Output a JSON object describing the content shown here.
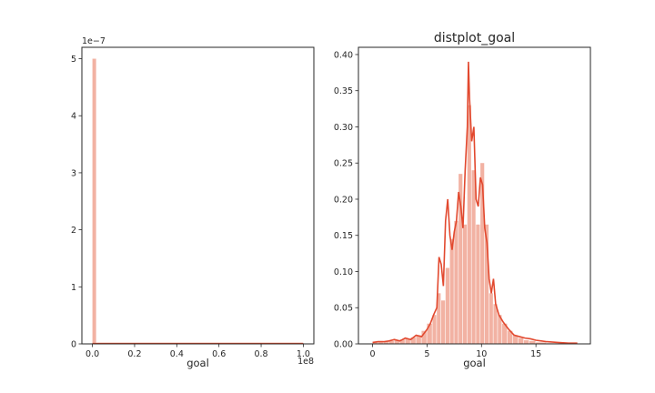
{
  "colors": {
    "bar": "#f2b2a3",
    "kde": "#e2492f",
    "axis": "#262626",
    "background": "#ffffff"
  },
  "chart_data": [
    {
      "type": "histogram",
      "title": "",
      "xlabel": "goal",
      "ylabel": "",
      "x_offset_label": "1e8",
      "y_offset_label": "1e−7",
      "xlim": [
        -0.05,
        1.05
      ],
      "ylim": [
        0,
        5.2
      ],
      "xticks": [
        0.0,
        0.2,
        0.4,
        0.6,
        0.8,
        1.0
      ],
      "xtick_labels": [
        "0.0",
        "0.2",
        "0.4",
        "0.6",
        "0.8",
        "1.0"
      ],
      "yticks": [
        0,
        1,
        2,
        3,
        4,
        5
      ],
      "ytick_labels": [
        "0",
        "1",
        "2",
        "3",
        "4",
        "5"
      ],
      "bins": [
        {
          "x0": 0.0,
          "x1": 0.02,
          "height": 5.0
        },
        {
          "x0": 0.02,
          "x1": 1.0,
          "height": 0.02
        }
      ],
      "kde": {
        "x": [
          0.0,
          1.0
        ],
        "y": [
          0.005,
          0.005
        ]
      },
      "grid": false
    },
    {
      "type": "histogram",
      "title": "distplot_goal",
      "xlabel": "goal",
      "ylabel": "",
      "xlim": [
        -1.3,
        20.0
      ],
      "ylim": [
        0,
        0.41
      ],
      "xticks": [
        0,
        5,
        10,
        15
      ],
      "xtick_labels": [
        "0",
        "5",
        "10",
        "15"
      ],
      "yticks": [
        0.0,
        0.05,
        0.1,
        0.15,
        0.2,
        0.25,
        0.3,
        0.35,
        0.4
      ],
      "ytick_labels": [
        "0.00",
        "0.05",
        "0.10",
        "0.15",
        "0.20",
        "0.25",
        "0.30",
        "0.35",
        "0.40"
      ],
      "bins": [
        {
          "x0": 0.0,
          "x1": 0.5,
          "height": 0.002
        },
        {
          "x0": 0.5,
          "x1": 1.0,
          "height": 0.002
        },
        {
          "x0": 1.0,
          "x1": 1.5,
          "height": 0.003
        },
        {
          "x0": 1.5,
          "x1": 2.0,
          "height": 0.004
        },
        {
          "x0": 2.0,
          "x1": 2.5,
          "height": 0.005
        },
        {
          "x0": 2.5,
          "x1": 3.0,
          "height": 0.006
        },
        {
          "x0": 3.0,
          "x1": 3.5,
          "height": 0.007
        },
        {
          "x0": 3.5,
          "x1": 4.0,
          "height": 0.009
        },
        {
          "x0": 4.0,
          "x1": 4.5,
          "height": 0.012
        },
        {
          "x0": 4.5,
          "x1": 5.0,
          "height": 0.018
        },
        {
          "x0": 5.0,
          "x1": 5.5,
          "height": 0.028
        },
        {
          "x0": 5.5,
          "x1": 5.9,
          "height": 0.04
        },
        {
          "x0": 5.9,
          "x1": 6.3,
          "height": 0.07
        },
        {
          "x0": 6.3,
          "x1": 6.7,
          "height": 0.06
        },
        {
          "x0": 6.7,
          "x1": 7.1,
          "height": 0.105
        },
        {
          "x0": 7.1,
          "x1": 7.5,
          "height": 0.145
        },
        {
          "x0": 7.5,
          "x1": 7.9,
          "height": 0.17
        },
        {
          "x0": 7.9,
          "x1": 8.3,
          "height": 0.235
        },
        {
          "x0": 8.3,
          "x1": 8.7,
          "height": 0.165
        },
        {
          "x0": 8.7,
          "x1": 9.1,
          "height": 0.33
        },
        {
          "x0": 9.1,
          "x1": 9.5,
          "height": 0.24
        },
        {
          "x0": 9.5,
          "x1": 9.9,
          "height": 0.165
        },
        {
          "x0": 9.9,
          "x1": 10.3,
          "height": 0.25
        },
        {
          "x0": 10.3,
          "x1": 10.7,
          "height": 0.165
        },
        {
          "x0": 10.7,
          "x1": 11.1,
          "height": 0.07
        },
        {
          "x0": 11.1,
          "x1": 11.5,
          "height": 0.055
        },
        {
          "x0": 11.5,
          "x1": 11.9,
          "height": 0.04
        },
        {
          "x0": 11.9,
          "x1": 12.4,
          "height": 0.028
        },
        {
          "x0": 12.4,
          "x1": 12.9,
          "height": 0.018
        },
        {
          "x0": 12.9,
          "x1": 13.4,
          "height": 0.012
        },
        {
          "x0": 13.4,
          "x1": 13.9,
          "height": 0.008
        },
        {
          "x0": 13.9,
          "x1": 14.4,
          "height": 0.005
        },
        {
          "x0": 14.4,
          "x1": 15.0,
          "height": 0.004
        },
        {
          "x0": 15.0,
          "x1": 16.0,
          "height": 0.002
        },
        {
          "x0": 16.0,
          "x1": 17.0,
          "height": 0.001
        },
        {
          "x0": 17.0,
          "x1": 18.0,
          "height": 0.001
        }
      ],
      "kde": {
        "x": [
          0.0,
          0.5,
          1.0,
          1.5,
          2.0,
          2.5,
          3.0,
          3.5,
          4.0,
          4.5,
          5.0,
          5.3,
          5.6,
          5.9,
          6.1,
          6.3,
          6.5,
          6.7,
          6.9,
          7.1,
          7.3,
          7.5,
          7.7,
          7.9,
          8.1,
          8.3,
          8.5,
          8.7,
          8.8,
          8.9,
          9.1,
          9.3,
          9.5,
          9.7,
          9.9,
          10.1,
          10.3,
          10.5,
          10.7,
          10.9,
          11.1,
          11.3,
          11.6,
          12.0,
          12.5,
          13.0,
          13.5,
          14.0,
          14.5,
          15.0,
          15.5,
          16.0,
          17.0,
          18.0,
          18.8
        ],
        "y": [
          0.002,
          0.003,
          0.003,
          0.004,
          0.006,
          0.004,
          0.008,
          0.006,
          0.012,
          0.01,
          0.02,
          0.028,
          0.04,
          0.05,
          0.12,
          0.11,
          0.08,
          0.17,
          0.2,
          0.15,
          0.13,
          0.155,
          0.17,
          0.21,
          0.19,
          0.16,
          0.24,
          0.3,
          0.39,
          0.34,
          0.28,
          0.3,
          0.2,
          0.19,
          0.23,
          0.22,
          0.16,
          0.14,
          0.09,
          0.07,
          0.09,
          0.055,
          0.04,
          0.03,
          0.02,
          0.012,
          0.01,
          0.008,
          0.007,
          0.005,
          0.004,
          0.003,
          0.002,
          0.001,
          0.001
        ]
      },
      "grid": false
    }
  ]
}
